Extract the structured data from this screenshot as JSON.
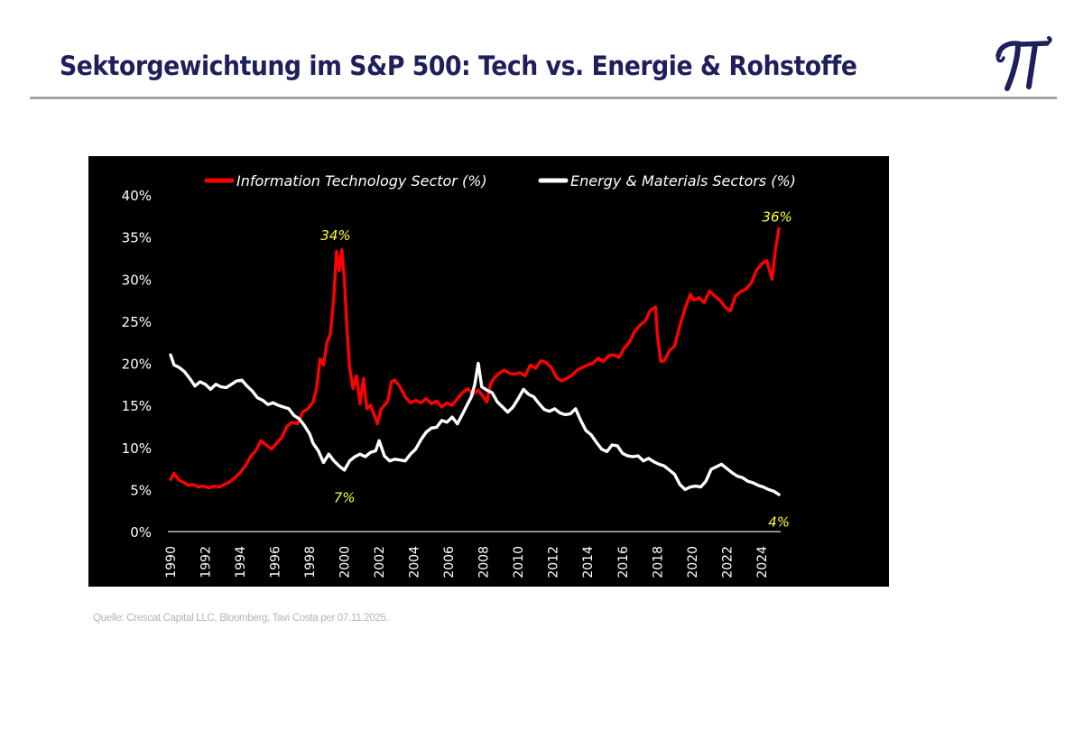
{
  "header": {
    "title": "Sektorgewichtung im S&P 500: Tech vs. Energie & Rohstoffe",
    "logo": "pi-logo-icon"
  },
  "footer": {
    "source": "Quelle: Crescat Capital LLC, Bloomberg, Tavi Costa per 07.11.2025."
  },
  "colors": {
    "title": "#1f1f5c",
    "panel_bg": "#000000",
    "tech_series": "#ff0000",
    "energy_series": "#ffffff",
    "annotation": "#ffff33"
  },
  "chart_data": {
    "type": "line",
    "title": "",
    "xlabel": "",
    "ylabel": "",
    "ylim": [
      0,
      40
    ],
    "xlim": [
      1990,
      2025
    ],
    "grid": false,
    "legend_position": "top",
    "y_ticks": [
      0,
      5,
      10,
      15,
      20,
      25,
      30,
      35,
      40
    ],
    "y_tick_labels": [
      "0%",
      "5%",
      "10%",
      "15%",
      "20%",
      "25%",
      "30%",
      "35%",
      "40%"
    ],
    "x_ticks": [
      1990,
      1992,
      1994,
      1996,
      1998,
      2000,
      2002,
      2004,
      2006,
      2008,
      2010,
      2012,
      2014,
      2016,
      2018,
      2020,
      2022,
      2024
    ],
    "x_tick_labels": [
      "1990",
      "1992",
      "1994",
      "1996",
      "1998",
      "2000",
      "2002",
      "2004",
      "2006",
      "2008",
      "2010",
      "2012",
      "2014",
      "2016",
      "2018",
      "2020",
      "2022",
      "2024"
    ],
    "series": [
      {
        "name": "Information Technology Sector (%)",
        "color": "#ff0000",
        "x": [
          1990.0,
          1990.2,
          1990.5,
          1990.8,
          1991.0,
          1991.3,
          1991.6,
          1991.9,
          1992.2,
          1992.5,
          1992.8,
          1993.1,
          1993.4,
          1993.7,
          1994.0,
          1994.3,
          1994.6,
          1994.9,
          1995.2,
          1995.5,
          1995.8,
          1996.1,
          1996.4,
          1996.7,
          1997.0,
          1997.3,
          1997.6,
          1997.9,
          1998.2,
          1998.4,
          1998.6,
          1998.8,
          1999.0,
          1999.2,
          1999.4,
          1999.55,
          1999.7,
          1999.85,
          2000.0,
          2000.15,
          2000.3,
          2000.5,
          2000.7,
          2000.9,
          2001.1,
          2001.3,
          2001.5,
          2001.7,
          2001.9,
          2002.1,
          2002.3,
          2002.5,
          2002.7,
          2002.9,
          2003.2,
          2003.5,
          2003.8,
          2004.1,
          2004.4,
          2004.7,
          2005.0,
          2005.3,
          2005.6,
          2005.9,
          2006.2,
          2006.5,
          2006.8,
          2007.1,
          2007.4,
          2007.7,
          2008.0,
          2008.2,
          2008.4,
          2008.6,
          2008.9,
          2009.2,
          2009.5,
          2009.8,
          2010.1,
          2010.4,
          2010.7,
          2011.0,
          2011.3,
          2011.6,
          2011.9,
          2012.2,
          2012.5,
          2012.8,
          2013.1,
          2013.4,
          2013.7,
          2014.0,
          2014.3,
          2014.6,
          2014.9,
          2015.2,
          2015.5,
          2015.8,
          2016.1,
          2016.4,
          2016.7,
          2017.0,
          2017.3,
          2017.6,
          2017.9,
          2018.0,
          2018.2,
          2018.4,
          2018.7,
          2019.0,
          2019.3,
          2019.6,
          2019.9,
          2020.1,
          2020.4,
          2020.7,
          2021.0,
          2021.3,
          2021.6,
          2021.9,
          2022.2,
          2022.5,
          2022.8,
          2023.1,
          2023.4,
          2023.7,
          2024.0,
          2024.3,
          2024.6,
          2024.8,
          2025.0
        ],
        "values": [
          6.2,
          6.9,
          6.1,
          5.8,
          5.5,
          5.6,
          5.3,
          5.4,
          5.2,
          5.4,
          5.3,
          5.6,
          5.9,
          6.4,
          7.0,
          7.8,
          8.9,
          9.6,
          10.8,
          10.3,
          9.8,
          10.5,
          11.2,
          12.5,
          13.0,
          12.8,
          14.2,
          14.6,
          15.4,
          17.0,
          20.5,
          19.8,
          22.5,
          23.5,
          28.0,
          33.3,
          31.0,
          33.5,
          30.0,
          24.0,
          19.5,
          17.0,
          18.5,
          15.2,
          18.2,
          14.6,
          15.0,
          14.0,
          12.8,
          14.5,
          15.0,
          15.5,
          17.8,
          18.0,
          17.2,
          16.0,
          15.3,
          15.6,
          15.3,
          15.8,
          15.2,
          15.5,
          14.8,
          15.3,
          15.0,
          15.8,
          16.5,
          17.0,
          16.3,
          16.8,
          16.0,
          15.4,
          17.5,
          18.2,
          18.8,
          19.2,
          18.8,
          18.7,
          18.9,
          18.5,
          19.8,
          19.4,
          20.3,
          20.1,
          19.5,
          18.3,
          17.9,
          18.2,
          18.6,
          19.2,
          19.5,
          19.8,
          20.0,
          20.6,
          20.2,
          20.9,
          21.0,
          20.7,
          21.8,
          22.5,
          23.8,
          24.5,
          25.0,
          26.3,
          26.7,
          23.5,
          20.2,
          20.3,
          21.5,
          22.0,
          24.5,
          26.5,
          28.2,
          27.5,
          27.8,
          27.2,
          28.6,
          28.0,
          27.5,
          26.7,
          26.2,
          28.0,
          28.5,
          28.8,
          29.5,
          31.0,
          31.8,
          32.2,
          30.0,
          33.5,
          36.0
        ]
      },
      {
        "name": "Energy & Materials Sectors (%)",
        "color": "#ffffff",
        "x": [
          1990.0,
          1990.2,
          1990.5,
          1990.8,
          1991.1,
          1991.4,
          1991.7,
          1992.0,
          1992.3,
          1992.6,
          1992.9,
          1993.2,
          1993.5,
          1993.8,
          1994.1,
          1994.4,
          1994.7,
          1995.0,
          1995.3,
          1995.6,
          1995.9,
          1996.2,
          1996.5,
          1996.8,
          1997.1,
          1997.4,
          1997.7,
          1998.0,
          1998.2,
          1998.5,
          1998.8,
          1999.1,
          1999.4,
          1999.7,
          2000.0,
          2000.3,
          2000.6,
          2000.9,
          2001.2,
          2001.5,
          2001.8,
          2002.0,
          2002.3,
          2002.6,
          2002.9,
          2003.2,
          2003.5,
          2003.8,
          2004.1,
          2004.4,
          2004.7,
          2005.0,
          2005.3,
          2005.6,
          2005.9,
          2006.2,
          2006.5,
          2006.8,
          2007.1,
          2007.3,
          2007.5,
          2007.7,
          2007.9,
          2008.2,
          2008.5,
          2008.8,
          2009.1,
          2009.4,
          2009.7,
          2010.0,
          2010.3,
          2010.6,
          2010.9,
          2011.2,
          2011.5,
          2011.8,
          2012.1,
          2012.4,
          2012.7,
          2013.0,
          2013.3,
          2013.6,
          2013.9,
          2014.2,
          2014.5,
          2014.8,
          2015.1,
          2015.4,
          2015.7,
          2016.0,
          2016.3,
          2016.6,
          2016.9,
          2017.2,
          2017.5,
          2017.8,
          2018.1,
          2018.4,
          2018.7,
          2019.0,
          2019.3,
          2019.6,
          2019.9,
          2020.2,
          2020.5,
          2020.8,
          2021.1,
          2021.4,
          2021.7,
          2022.0,
          2022.3,
          2022.6,
          2022.9,
          2023.2,
          2023.5,
          2023.8,
          2024.1,
          2024.4,
          2024.7,
          2025.0
        ],
        "values": [
          21.0,
          19.8,
          19.5,
          19.0,
          18.2,
          17.3,
          17.8,
          17.5,
          16.9,
          17.5,
          17.2,
          17.1,
          17.5,
          17.9,
          18.0,
          17.3,
          16.7,
          15.9,
          15.6,
          15.1,
          15.3,
          15.0,
          14.8,
          14.6,
          13.8,
          13.4,
          12.6,
          11.6,
          10.5,
          9.6,
          8.2,
          9.2,
          8.4,
          7.8,
          7.3,
          8.4,
          8.9,
          9.2,
          8.9,
          9.4,
          9.6,
          10.8,
          9.0,
          8.4,
          8.6,
          8.5,
          8.4,
          9.2,
          9.8,
          10.9,
          11.8,
          12.3,
          12.4,
          13.2,
          13.0,
          13.6,
          12.8,
          14.0,
          15.2,
          16.0,
          17.5,
          20.0,
          17.2,
          16.8,
          16.5,
          15.4,
          14.8,
          14.2,
          14.8,
          15.8,
          16.9,
          16.3,
          16.0,
          15.2,
          14.5,
          14.3,
          14.6,
          14.1,
          13.9,
          14.0,
          14.6,
          13.2,
          12.0,
          11.5,
          10.6,
          9.8,
          9.5,
          10.3,
          10.2,
          9.3,
          9.0,
          8.9,
          9.0,
          8.4,
          8.7,
          8.3,
          8.0,
          7.8,
          7.3,
          6.8,
          5.6,
          5.0,
          5.3,
          5.4,
          5.3,
          6.0,
          7.4,
          7.7,
          8.0,
          7.5,
          7.0,
          6.6,
          6.4,
          6.0,
          5.8,
          5.5,
          5.3,
          5.0,
          4.8,
          4.4
        ]
      }
    ],
    "annotations": [
      {
        "text": "34%",
        "x": 1999.5,
        "y": 34,
        "color": "#ffff33",
        "series": "Information Technology Sector (%)"
      },
      {
        "text": "7%",
        "x": 2000.0,
        "y": 7,
        "color": "#ffff33",
        "series": "Energy & Materials Sectors (%)"
      },
      {
        "text": "36%",
        "x": 2025.0,
        "y": 36,
        "color": "#ffff33",
        "series": "Information Technology Sector (%)"
      },
      {
        "text": "4%",
        "x": 2025.0,
        "y": 4,
        "color": "#ffff33",
        "series": "Energy & Materials Sectors (%)"
      }
    ]
  }
}
